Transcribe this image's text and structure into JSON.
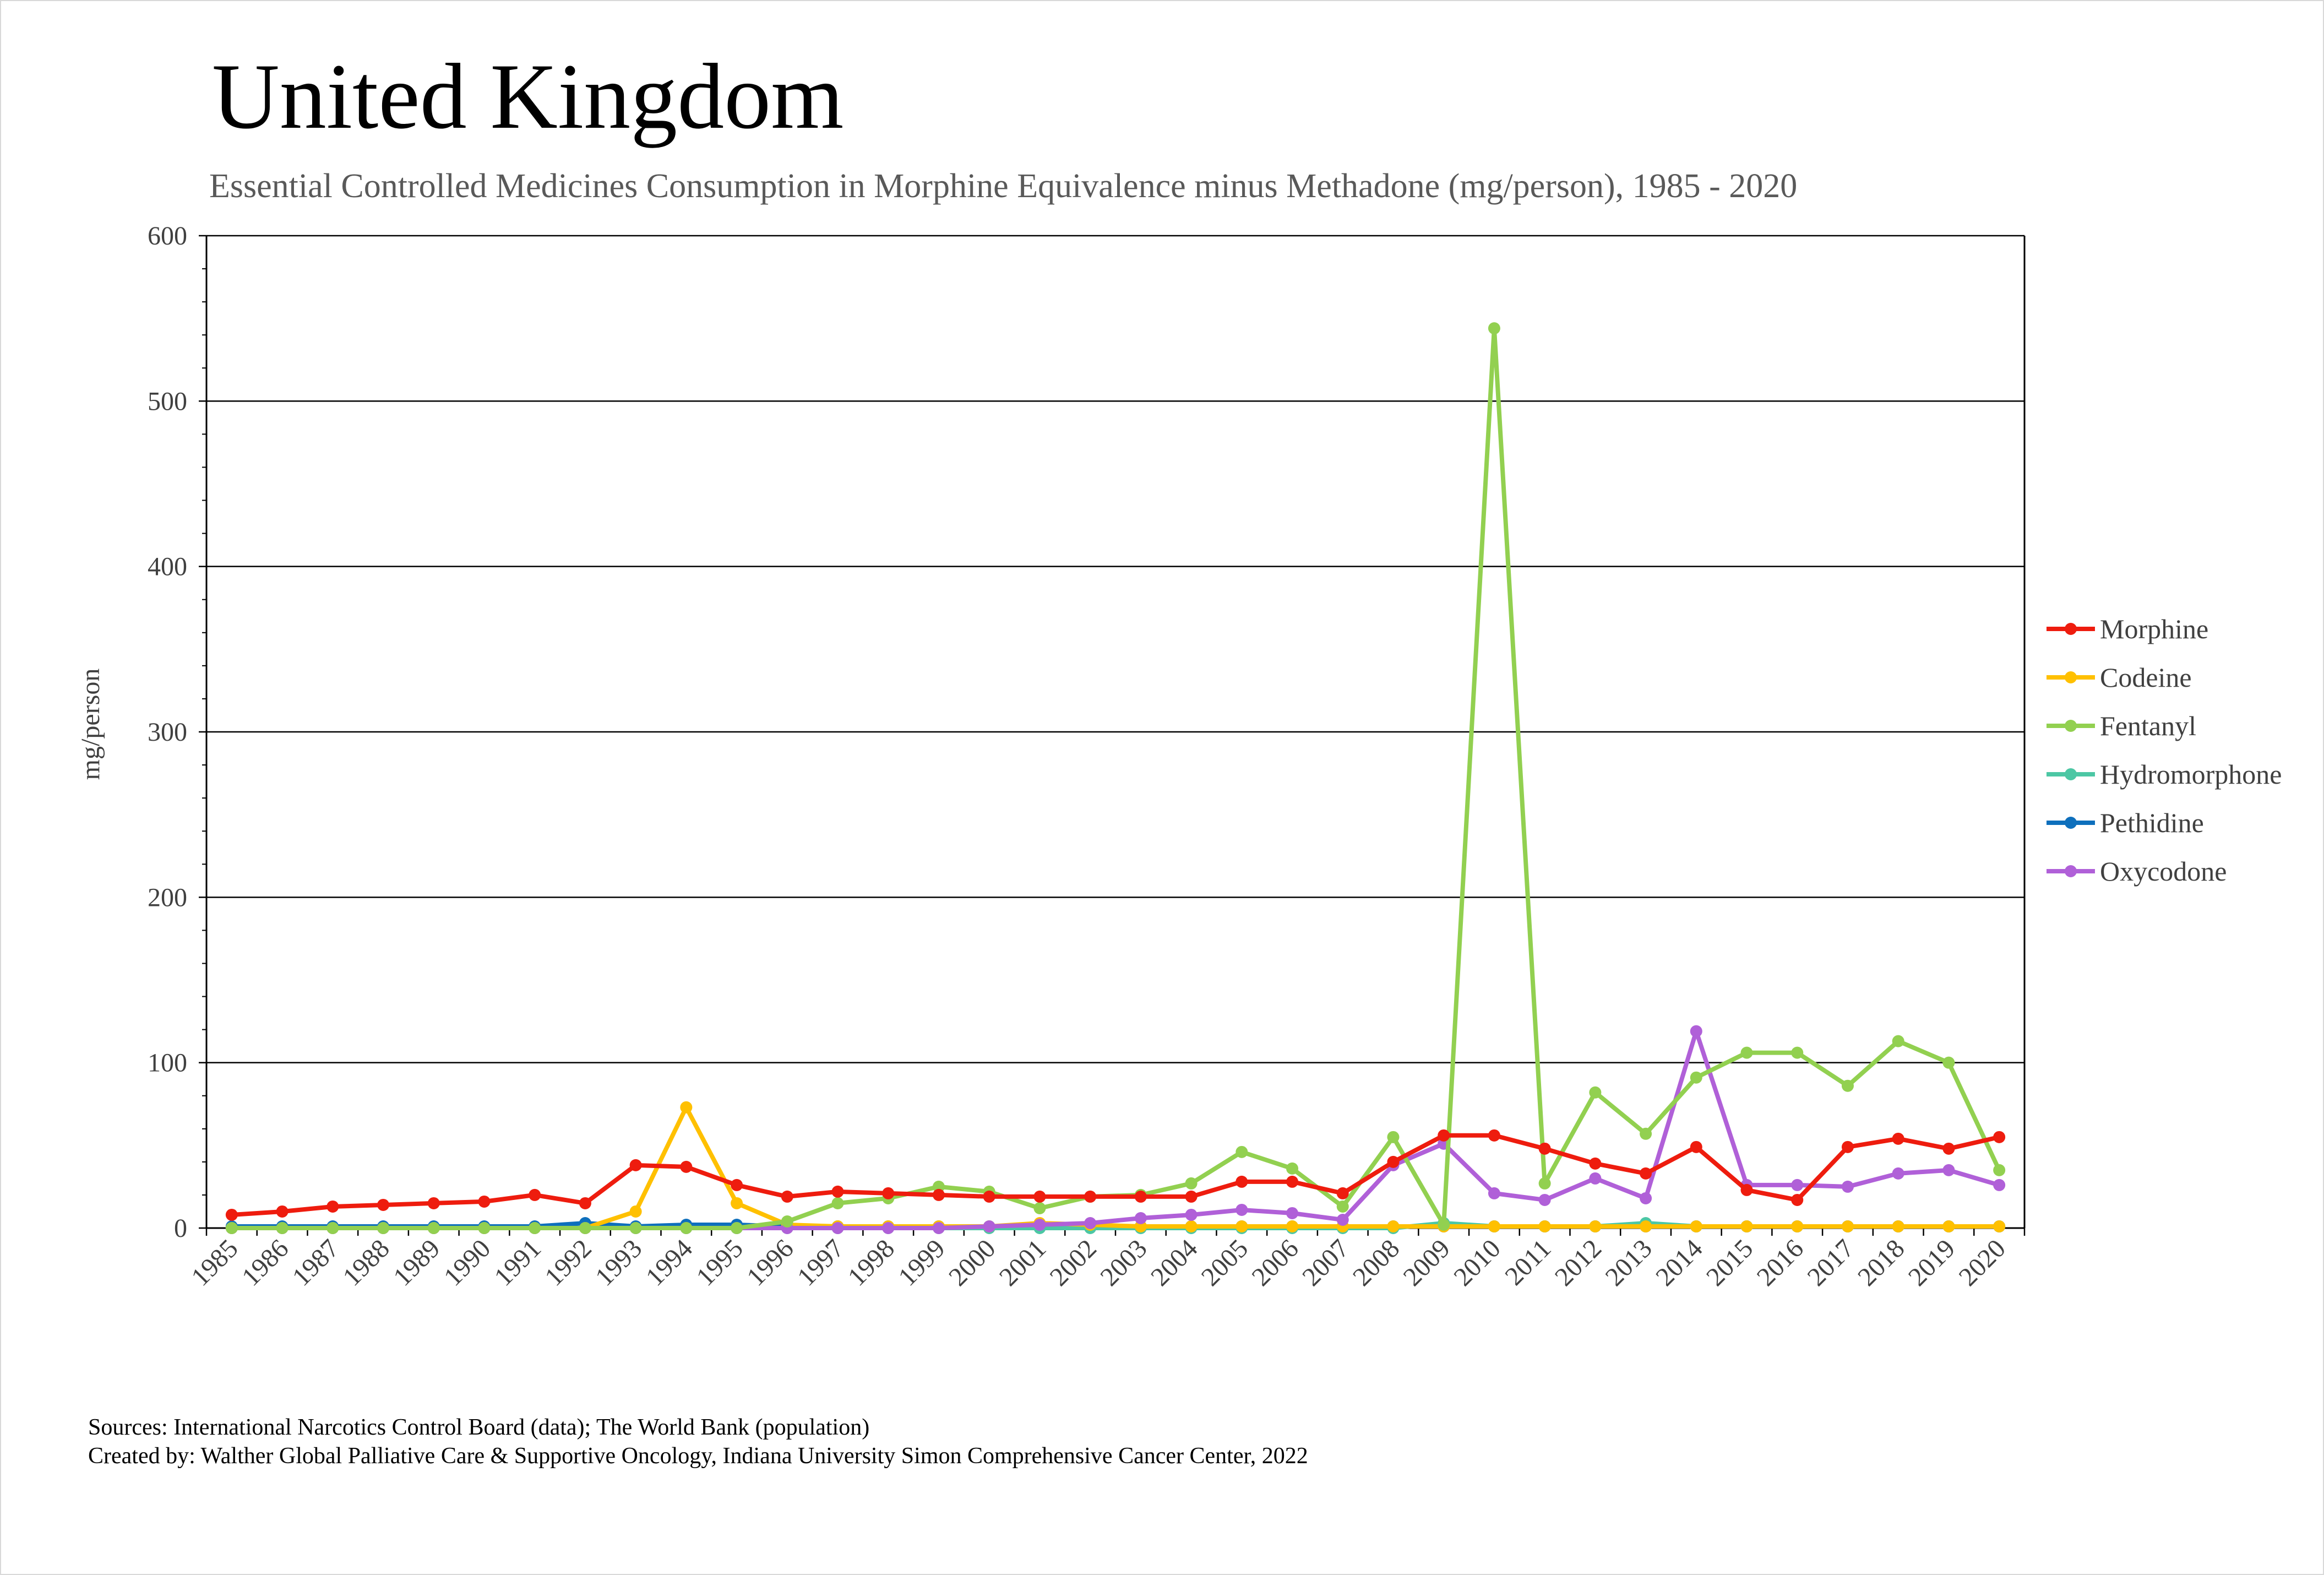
{
  "chart_data": {
    "type": "line",
    "title": "United Kingdom",
    "subtitle": "Essential Controlled Medicines Consumption in Morphine Equivalence minus Methadone (mg/person), 1985 - 2020",
    "xlabel": "",
    "ylabel": "mg/person",
    "ylim": [
      0,
      600
    ],
    "yticks": [
      0,
      100,
      200,
      300,
      400,
      500,
      600
    ],
    "grid": "horizontal major",
    "legend_position": "right",
    "categories": [
      "1985",
      "1986",
      "1987",
      "1988",
      "1989",
      "1990",
      "1991",
      "1992",
      "1993",
      "1994",
      "1995",
      "1996",
      "1997",
      "1998",
      "1999",
      "2000",
      "2001",
      "2002",
      "2003",
      "2004",
      "2005",
      "2006",
      "2007",
      "2008",
      "2009",
      "2010",
      "2011",
      "2012",
      "2013",
      "2014",
      "2015",
      "2016",
      "2017",
      "2018",
      "2019",
      "2020"
    ],
    "series": [
      {
        "name": "Morphine",
        "color": "#ee1c0e",
        "values": [
          8,
          10,
          13,
          14,
          15,
          16,
          20,
          15,
          38,
          37,
          26,
          19,
          22,
          21,
          20,
          19,
          19,
          19,
          19,
          19,
          28,
          28,
          21,
          40,
          56,
          56,
          48,
          39,
          33,
          49,
          23,
          17,
          49,
          54,
          48,
          55
        ]
      },
      {
        "name": "Codeine",
        "color": "#ffc000",
        "values": [
          0,
          0,
          0,
          0,
          0,
          0,
          0,
          0,
          10,
          73,
          15,
          2,
          1,
          1,
          1,
          1,
          3,
          2,
          1,
          1,
          1,
          1,
          1,
          1,
          1,
          1,
          1,
          1,
          1,
          1,
          1,
          1,
          1,
          1,
          1,
          1
        ]
      },
      {
        "name": "Fentanyl",
        "color": "#92d050",
        "values": [
          0,
          0,
          0,
          0,
          0,
          0,
          0,
          0,
          0,
          0,
          0,
          4,
          15,
          18,
          25,
          22,
          12,
          19,
          20,
          27,
          46,
          36,
          13,
          55,
          2,
          544,
          27,
          82,
          57,
          91,
          106,
          106,
          86,
          113,
          100,
          35
        ]
      },
      {
        "name": "Hydromorphone",
        "color": "#4cc7a4",
        "values": [
          0,
          0,
          0,
          0,
          0,
          0,
          0,
          0,
          0,
          0,
          0,
          0,
          0,
          0,
          0,
          0,
          0,
          0,
          0,
          0,
          0,
          0,
          0,
          0,
          3,
          1,
          1,
          1,
          3,
          1,
          1,
          1,
          1,
          1,
          1,
          1
        ]
      },
      {
        "name": "Pethidine",
        "color": "#0e6fbc",
        "values": [
          1,
          1,
          1,
          1,
          1,
          1,
          1,
          3,
          1,
          2,
          2,
          1,
          1,
          1,
          1,
          1,
          1,
          1,
          1,
          1,
          1,
          1,
          1,
          1,
          1,
          1,
          1,
          1,
          1,
          1,
          1,
          1,
          1,
          1,
          1,
          1
        ]
      },
      {
        "name": "Oxycodone",
        "color": "#b060d8",
        "values": [
          0,
          0,
          0,
          0,
          0,
          0,
          0,
          0,
          0,
          0,
          0,
          0,
          0,
          0,
          0,
          1,
          2,
          3,
          6,
          8,
          11,
          9,
          5,
          38,
          51,
          21,
          17,
          30,
          18,
          119,
          26,
          26,
          25,
          33,
          35,
          26
        ]
      }
    ]
  },
  "footer": {
    "sources": "Sources: International Narcotics Control Board (data); The World Bank (population)",
    "created_by": "Created by: Walther Global Palliative Care & Supportive Oncology, Indiana University Simon Comprehensive Cancer Center, 2022"
  }
}
